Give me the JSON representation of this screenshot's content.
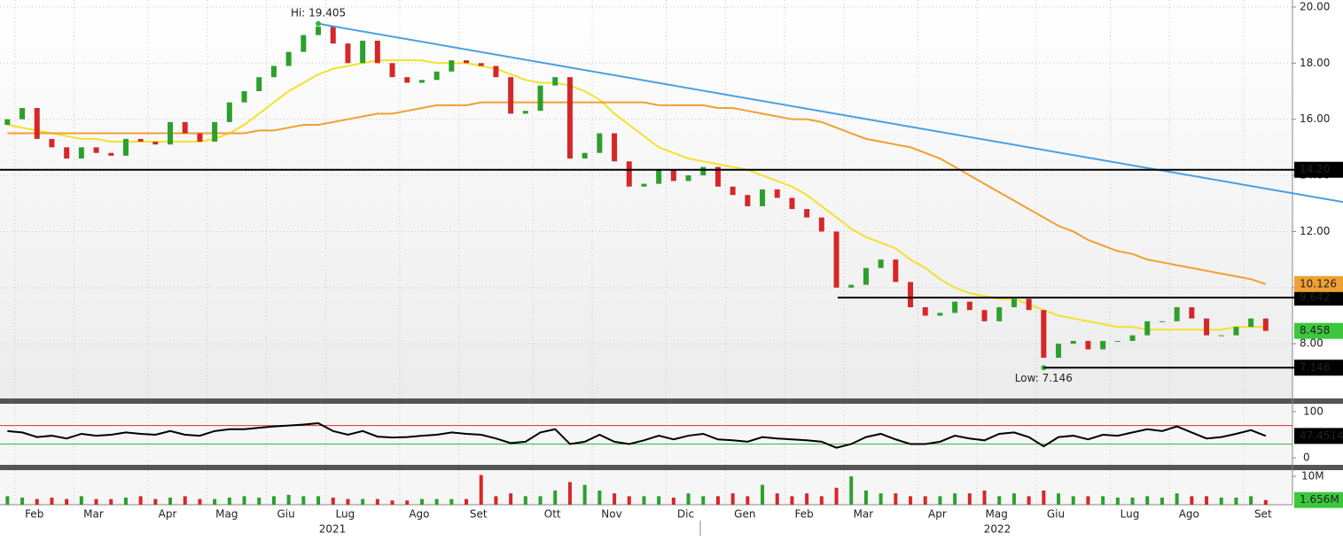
{
  "chart_data": [
    {
      "type": "candlestick",
      "name": "price",
      "open": [
        15.8,
        16.0,
        16.4,
        15.3,
        15.0,
        14.6,
        15.0,
        14.8,
        14.7,
        15.3,
        15.2,
        15.1,
        15.9,
        15.5,
        15.2,
        15.9,
        16.6,
        17.0,
        17.5,
        17.9,
        18.4,
        19.0,
        19.3,
        18.7,
        18.0,
        18.8,
        18.0,
        17.5,
        17.3,
        17.4,
        17.7,
        18.1,
        18.0,
        17.9,
        17.5,
        16.2,
        16.3,
        17.2,
        17.5,
        14.6,
        14.8,
        15.5,
        14.5,
        13.6,
        13.7,
        14.2,
        13.8,
        14.0,
        14.3,
        13.6,
        13.3,
        12.9,
        13.5,
        13.2,
        12.8,
        12.5,
        12.0,
        10.0,
        10.1,
        10.7,
        11.0,
        10.2,
        9.3,
        9.0,
        9.1,
        9.5,
        9.2,
        8.8,
        9.3,
        9.6,
        9.2,
        7.5,
        8.0,
        8.1,
        7.8,
        8.1,
        8.1,
        8.3,
        8.8,
        8.8,
        9.3,
        8.9,
        8.3,
        8.3,
        8.6,
        8.9
      ],
      "close": [
        16.0,
        16.4,
        15.3,
        15.0,
        14.6,
        15.0,
        14.8,
        14.7,
        15.3,
        15.2,
        15.1,
        15.9,
        15.5,
        15.2,
        15.9,
        16.6,
        17.0,
        17.5,
        17.9,
        18.4,
        19.0,
        19.3,
        18.7,
        18.0,
        18.8,
        18.0,
        17.5,
        17.3,
        17.4,
        17.7,
        18.1,
        18.0,
        17.9,
        17.5,
        16.2,
        16.3,
        17.2,
        17.5,
        14.6,
        14.8,
        15.5,
        14.5,
        13.6,
        13.7,
        14.2,
        13.8,
        14.0,
        14.3,
        13.6,
        13.3,
        12.9,
        13.5,
        13.2,
        12.8,
        12.5,
        12.0,
        10.0,
        10.1,
        10.7,
        11.0,
        10.2,
        9.3,
        9.0,
        9.1,
        9.5,
        9.2,
        8.8,
        9.3,
        9.6,
        9.2,
        7.5,
        8.0,
        8.1,
        7.8,
        8.1,
        8.1,
        8.3,
        8.8,
        8.8,
        9.3,
        8.9,
        8.3,
        8.3,
        8.6,
        8.9,
        8.458
      ],
      "up_color": "#2ca02c",
      "down_color": "#d62728",
      "series": [
        {
          "name": "MA50",
          "color": "#f2e22c",
          "values": [
            15.8,
            15.7,
            15.6,
            15.5,
            15.4,
            15.3,
            15.3,
            15.2,
            15.2,
            15.2,
            15.2,
            15.2,
            15.2,
            15.2,
            15.3,
            15.5,
            15.8,
            16.2,
            16.6,
            17.0,
            17.3,
            17.6,
            17.8,
            17.9,
            18.0,
            18.1,
            18.1,
            18.1,
            18.1,
            18.0,
            18.0,
            18.0,
            17.9,
            17.8,
            17.6,
            17.4,
            17.3,
            17.3,
            17.2,
            17.0,
            16.7,
            16.2,
            15.8,
            15.4,
            15.0,
            14.8,
            14.6,
            14.5,
            14.4,
            14.3,
            14.2,
            14.0,
            13.8,
            13.6,
            13.3,
            12.9,
            12.5,
            12.1,
            11.8,
            11.6,
            11.4,
            11.0,
            10.7,
            10.3,
            10.0,
            9.8,
            9.7,
            9.6,
            9.6,
            9.4,
            9.2,
            9.0,
            8.9,
            8.8,
            8.7,
            8.6,
            8.6,
            8.5,
            8.5,
            8.5,
            8.5,
            8.5,
            8.5,
            8.6,
            8.6,
            8.6
          ]
        },
        {
          "name": "MA200",
          "color": "#f0a030",
          "values": [
            15.5,
            15.5,
            15.5,
            15.5,
            15.5,
            15.5,
            15.5,
            15.5,
            15.5,
            15.5,
            15.5,
            15.5,
            15.5,
            15.5,
            15.5,
            15.5,
            15.5,
            15.6,
            15.6,
            15.7,
            15.8,
            15.8,
            15.9,
            16.0,
            16.1,
            16.2,
            16.2,
            16.3,
            16.4,
            16.5,
            16.5,
            16.5,
            16.6,
            16.6,
            16.6,
            16.6,
            16.6,
            16.6,
            16.6,
            16.6,
            16.6,
            16.6,
            16.6,
            16.6,
            16.5,
            16.5,
            16.5,
            16.5,
            16.4,
            16.4,
            16.3,
            16.2,
            16.1,
            16.0,
            16.0,
            15.9,
            15.7,
            15.5,
            15.3,
            15.2,
            15.1,
            15.0,
            14.8,
            14.6,
            14.3,
            14.0,
            13.7,
            13.4,
            13.1,
            12.8,
            12.5,
            12.2,
            12.0,
            11.7,
            11.5,
            11.3,
            11.2,
            11.0,
            10.9,
            10.8,
            10.7,
            10.6,
            10.5,
            10.4,
            10.3,
            10.126
          ]
        }
      ],
      "trendline": {
        "color": "#4a9fe0",
        "values": [
          19.405,
          13.05
        ]
      },
      "high": {
        "value": 19.405,
        "label": "Hi: 19.405"
      },
      "low": {
        "value": 7.146,
        "label": "Low: 7.146"
      },
      "levels": [
        {
          "value": 14.2,
          "label": "14.20"
        },
        {
          "value": 9.642,
          "label": "9.642"
        },
        {
          "value": 7.146,
          "label": "7.146"
        }
      ],
      "last_labels": [
        {
          "value": 10.126,
          "label": "10.126",
          "color": "#f0a030"
        },
        {
          "value": 8.458,
          "label": "8.458",
          "color": "#3cc83c"
        }
      ],
      "ylim": [
        6.05,
        20.25
      ],
      "yticks": [
        {
          "value": 20,
          "label": "20.00"
        },
        {
          "value": 18,
          "label": "18.00"
        },
        {
          "value": 16,
          "label": "16.00"
        },
        {
          "value": 14,
          "label": "14.00"
        },
        {
          "value": 12,
          "label": "12.00"
        },
        {
          "value": 10,
          "label": "10.00"
        },
        {
          "value": 8,
          "label": "8.00"
        }
      ],
      "grid": true
    },
    {
      "type": "line",
      "name": "rsi",
      "color": "#000000",
      "values": [
        58,
        55,
        45,
        48,
        42,
        52,
        48,
        50,
        55,
        52,
        50,
        58,
        50,
        48,
        58,
        62,
        62,
        65,
        68,
        70,
        72,
        75,
        58,
        50,
        58,
        46,
        44,
        45,
        48,
        50,
        55,
        52,
        50,
        42,
        32,
        35,
        55,
        62,
        30,
        35,
        50,
        35,
        30,
        38,
        48,
        40,
        48,
        52,
        40,
        38,
        35,
        45,
        42,
        40,
        38,
        35,
        22,
        30,
        45,
        52,
        40,
        30,
        30,
        35,
        48,
        42,
        38,
        52,
        55,
        45,
        25,
        45,
        48,
        40,
        50,
        48,
        55,
        62,
        58,
        68,
        55,
        42,
        45,
        52,
        60,
        47.4514
      ],
      "levels": [
        {
          "value": 70,
          "color": "#e03030"
        },
        {
          "value": 30,
          "color": "#30c030"
        }
      ],
      "last_label": {
        "value": 47.4514,
        "label": "47.4514"
      },
      "ylim": [
        -15,
        117
      ],
      "yticks": [
        100,
        0
      ]
    },
    {
      "type": "bar",
      "name": "volume",
      "categories": [
        null,
        "Feb",
        null,
        null,
        null,
        "Mar",
        null,
        null,
        null,
        null,
        "Apr",
        null,
        null,
        null,
        "Mag",
        null,
        null,
        null,
        "Giu",
        null,
        null,
        null,
        "Lug",
        null,
        null,
        null,
        null,
        "Ago",
        null,
        null,
        null,
        "Set",
        null,
        null,
        null,
        null,
        "Ott",
        null,
        null,
        null,
        "Nov",
        null,
        null,
        null,
        null,
        "Dic",
        null,
        null,
        null,
        "Gen",
        null,
        null,
        null,
        "Feb",
        null,
        null,
        null,
        "Mar",
        null,
        null,
        null,
        null,
        "Apr",
        null,
        null,
        null,
        "Mag",
        null,
        null,
        null,
        "Giu",
        null,
        null,
        null,
        null,
        "Lug",
        null,
        null,
        null,
        "Ago",
        null,
        null,
        null,
        null,
        "Set",
        null
      ],
      "years": [
        "2021",
        "2022"
      ],
      "values": [
        3,
        2.5,
        2,
        2.5,
        2,
        3,
        2,
        2,
        2.5,
        3,
        2,
        2.5,
        3,
        2,
        2,
        2.5,
        3,
        2.5,
        3,
        3.5,
        3,
        3,
        2.5,
        2,
        2,
        2,
        1.5,
        1.5,
        2,
        2,
        2,
        2,
        10.5,
        3,
        4,
        3,
        3,
        5,
        8,
        7,
        5,
        4,
        3,
        3,
        3,
        2.5,
        4,
        3,
        3,
        4,
        3,
        7,
        4,
        3,
        4,
        3,
        6,
        10,
        5,
        4,
        4,
        3,
        3,
        3,
        4,
        4,
        5,
        3,
        4,
        3,
        5,
        4,
        3,
        3,
        3,
        2.5,
        2.5,
        3,
        2.5,
        4,
        3,
        3,
        2.5,
        2.5,
        3,
        1.656
      ],
      "last_label": {
        "value": 1.656,
        "label": "1.656M"
      },
      "ylim": [
        0,
        12.2
      ],
      "yticks": [
        {
          "value": 10,
          "label": "10M"
        }
      ]
    }
  ]
}
